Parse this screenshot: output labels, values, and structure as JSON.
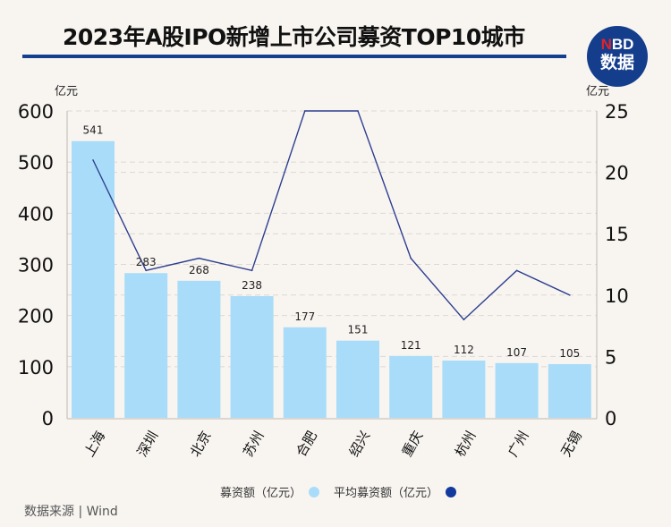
{
  "header": {
    "title": "2023年A股IPO新增上市公司募资TOP10城市",
    "logo_line1_accent": "N",
    "logo_line1_rest": "BD",
    "logo_line2": "数据"
  },
  "footer": {
    "source": "数据来源 | Wind"
  },
  "colors": {
    "bar": "#a9dcf8",
    "line": "#2e3f8f",
    "legend_line_dot": "#123a9c",
    "rule": "#123f8f"
  },
  "chart_data": {
    "type": "bar+line",
    "title": "2023年A股IPO新增上市公司募资TOP10城市",
    "categories": [
      "上海",
      "深圳",
      "北京",
      "苏州",
      "合肥",
      "绍兴",
      "重庆",
      "杭州",
      "广州",
      "无锡"
    ],
    "series": [
      {
        "name": "募资额（亿元）",
        "type": "bar",
        "axis": "left",
        "values": [
          541,
          283,
          268,
          238,
          177,
          151,
          121,
          112,
          107,
          105
        ],
        "data_labels": [
          "541",
          "283",
          "268",
          "238",
          "177",
          "151",
          "121",
          "112",
          "107",
          "105"
        ]
      },
      {
        "name": "平均募资额（亿元）",
        "type": "line",
        "axis": "right",
        "values": [
          21,
          12,
          13,
          12,
          25,
          25,
          13,
          8,
          12,
          10
        ]
      }
    ],
    "left_axis": {
      "unit": "亿元",
      "ylim": [
        0,
        600
      ],
      "ticks": [
        "0",
        "100",
        "200",
        "300",
        "400",
        "500",
        "600"
      ]
    },
    "right_axis": {
      "unit": "亿元",
      "ylim": [
        0,
        25
      ],
      "ticks": [
        "0",
        "5",
        "10",
        "15",
        "20",
        "25"
      ]
    },
    "grid": true,
    "legend": "bottom-center"
  }
}
